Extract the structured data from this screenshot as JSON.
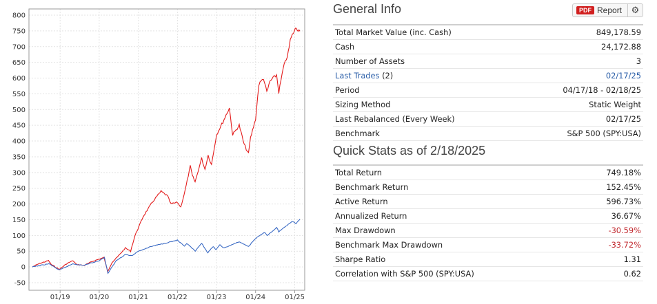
{
  "chart_data": {
    "type": "line",
    "xlabel": "",
    "ylabel": "",
    "ylim": [
      -50,
      800
    ],
    "yticks": [
      -50,
      0,
      50,
      100,
      150,
      200,
      250,
      300,
      350,
      400,
      450,
      500,
      550,
      600,
      650,
      700,
      750,
      800
    ],
    "xticks": [
      "01/19",
      "01/20",
      "01/21",
      "01/22",
      "01/23",
      "01/24",
      "01/25"
    ],
    "xtick_dates": [
      "2019-01-01",
      "2020-01-01",
      "2021-01-01",
      "2022-01-01",
      "2023-01-01",
      "2024-01-01",
      "2025-01-01"
    ],
    "grid": true,
    "series": [
      {
        "color": "#e31b1b",
        "points": [
          [
            "2018-04-17",
            0
          ],
          [
            "2018-06-15",
            10
          ],
          [
            "2018-09-15",
            20
          ],
          [
            "2018-10-10",
            8
          ],
          [
            "2018-12-24",
            -8
          ],
          [
            "2019-03-01",
            10
          ],
          [
            "2019-05-01",
            20
          ],
          [
            "2019-06-01",
            8
          ],
          [
            "2019-08-15",
            5
          ],
          [
            "2019-11-01",
            18
          ],
          [
            "2020-02-15",
            30
          ],
          [
            "2020-03-20",
            -15
          ],
          [
            "2020-05-01",
            15
          ],
          [
            "2020-06-15",
            30
          ],
          [
            "2020-09-01",
            60
          ],
          [
            "2020-10-20",
            50
          ],
          [
            "2020-12-01",
            100
          ],
          [
            "2021-02-15",
            160
          ],
          [
            "2021-03-15",
            175
          ],
          [
            "2021-05-01",
            200
          ],
          [
            "2021-06-01",
            215
          ],
          [
            "2021-08-01",
            240
          ],
          [
            "2021-10-01",
            225
          ],
          [
            "2021-11-01",
            200
          ],
          [
            "2022-01-01",
            205
          ],
          [
            "2022-02-01",
            190
          ],
          [
            "2022-03-15",
            245
          ],
          [
            "2022-05-01",
            320
          ],
          [
            "2022-05-20",
            290
          ],
          [
            "2022-06-15",
            270
          ],
          [
            "2022-08-15",
            345
          ],
          [
            "2022-09-15",
            310
          ],
          [
            "2022-10-15",
            355
          ],
          [
            "2022-11-15",
            325
          ],
          [
            "2023-01-01",
            420
          ],
          [
            "2023-03-01",
            460
          ],
          [
            "2023-05-01",
            505
          ],
          [
            "2023-06-01",
            420
          ],
          [
            "2023-08-01",
            450
          ],
          [
            "2023-09-15",
            390
          ],
          [
            "2023-10-27",
            360
          ],
          [
            "2023-11-15",
            410
          ],
          [
            "2024-01-01",
            470
          ],
          [
            "2024-02-01",
            580
          ],
          [
            "2024-03-15",
            600
          ],
          [
            "2024-04-15",
            555
          ],
          [
            "2024-05-15",
            590
          ],
          [
            "2024-07-15",
            610
          ],
          [
            "2024-08-05",
            555
          ],
          [
            "2024-09-15",
            630
          ],
          [
            "2024-11-01",
            680
          ],
          [
            "2024-11-20",
            720
          ],
          [
            "2024-12-20",
            745
          ],
          [
            "2025-01-15",
            760
          ],
          [
            "2025-02-18",
            749
          ]
        ]
      },
      {
        "color": "#3a6ac4",
        "points": [
          [
            "2018-04-17",
            0
          ],
          [
            "2018-09-20",
            10
          ],
          [
            "2018-12-24",
            -10
          ],
          [
            "2019-04-30",
            10
          ],
          [
            "2019-08-05",
            5
          ],
          [
            "2019-12-31",
            20
          ],
          [
            "2020-02-19",
            30
          ],
          [
            "2020-03-23",
            -20
          ],
          [
            "2020-06-08",
            20
          ],
          [
            "2020-09-02",
            40
          ],
          [
            "2020-10-30",
            35
          ],
          [
            "2020-12-31",
            50
          ],
          [
            "2021-04-30",
            65
          ],
          [
            "2021-08-31",
            75
          ],
          [
            "2021-12-31",
            85
          ],
          [
            "2022-03-08",
            65
          ],
          [
            "2022-03-29",
            75
          ],
          [
            "2022-06-16",
            50
          ],
          [
            "2022-08-16",
            75
          ],
          [
            "2022-10-12",
            45
          ],
          [
            "2022-12-01",
            65
          ],
          [
            "2022-12-28",
            55
          ],
          [
            "2023-02-02",
            70
          ],
          [
            "2023-03-13",
            60
          ],
          [
            "2023-07-31",
            80
          ],
          [
            "2023-10-27",
            65
          ],
          [
            "2023-12-29",
            90
          ],
          [
            "2024-03-28",
            110
          ],
          [
            "2024-04-19",
            100
          ],
          [
            "2024-07-16",
            125
          ],
          [
            "2024-08-05",
            112
          ],
          [
            "2024-12-06",
            145
          ],
          [
            "2025-01-13",
            138
          ],
          [
            "2025-02-18",
            152
          ]
        ]
      }
    ]
  },
  "general_info": {
    "title": "General Info",
    "report_button": {
      "pdf_badge": "PDF",
      "label": "Report"
    },
    "settings_icon": "gear-icon",
    "rows": [
      {
        "label": "Total Market Value (inc. Cash)",
        "value": "849,178.59"
      },
      {
        "label": "Cash",
        "value": "24,172.88"
      },
      {
        "label": "Number of Assets",
        "value": "3"
      },
      {
        "label_link": "Last Trades",
        "label_suffix": " (2)",
        "value": "02/17/25"
      },
      {
        "label": "Period",
        "value": "04/17/18 - 02/18/25"
      },
      {
        "label": "Sizing Method",
        "value": "Static Weight"
      },
      {
        "label": "Last Rebalanced (Every Week)",
        "value": "02/17/25"
      },
      {
        "label": "Benchmark",
        "value": "S&P 500 (SPY:USA)"
      }
    ]
  },
  "quick_stats": {
    "title": "Quick Stats as of 2/18/2025",
    "rows": [
      {
        "label": "Total Return",
        "value": "749.18%"
      },
      {
        "label": "Benchmark Return",
        "value": "152.45%"
      },
      {
        "label": "Active Return",
        "value": "596.73%"
      },
      {
        "label": "Annualized Return",
        "value": "36.67%"
      },
      {
        "label": "Max Drawdown",
        "value": "-30.59%"
      },
      {
        "label": "Benchmark Max Drawdown",
        "value": "-33.72%"
      },
      {
        "label": "Sharpe Ratio",
        "value": "1.31"
      },
      {
        "label": "Correlation with S&P 500 (SPY:USA)",
        "value": "0.62"
      }
    ]
  },
  "colors": {
    "negative": "#c1272d",
    "link": "#2a5ea8",
    "pdf_badge": "#d11f1f"
  }
}
